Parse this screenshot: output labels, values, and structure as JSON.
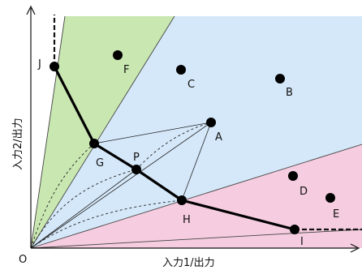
{
  "diagram": {
    "origin_label": "O",
    "x_axis_label": "入力1/出力",
    "y_axis_label": "入力2/出力",
    "points": {
      "A": "A",
      "B": "B",
      "C": "C",
      "D": "D",
      "E": "E",
      "F": "F",
      "G": "G",
      "H": "H",
      "I": "I",
      "J": "J",
      "P": "P"
    },
    "colors": {
      "green_region": "#c9e7b1",
      "blue_region": "#d5e8f9",
      "pink_region": "#f6cde0",
      "frontier": "#000000"
    }
  }
}
